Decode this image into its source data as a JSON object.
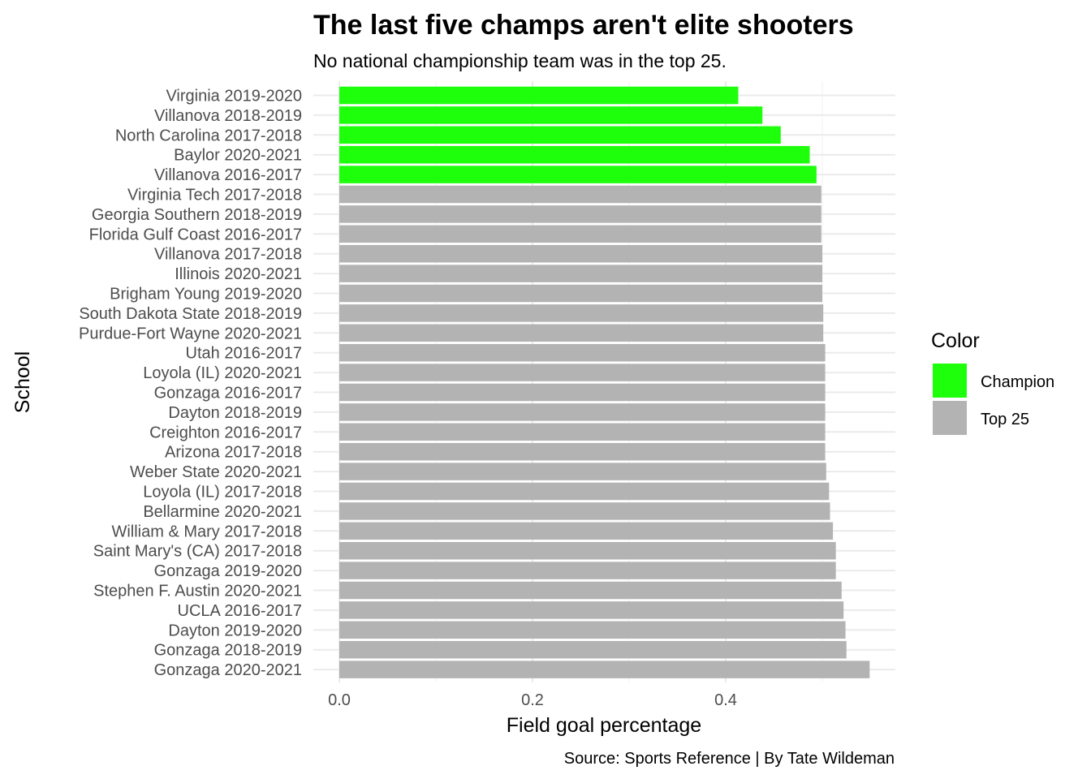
{
  "chart_data": {
    "type": "bar",
    "orientation": "horizontal",
    "title": "The last five champs aren't elite shooters",
    "subtitle": "No national championship team was in the top 25.",
    "xlabel": "Field goal percentage",
    "ylabel": "School",
    "caption": "Source: Sports Reference | By Tate Wildeman",
    "xlim": [
      0,
      0.55
    ],
    "x_ticks": [
      {
        "value": 0.0,
        "label": "0.0"
      },
      {
        "value": 0.2,
        "label": "0.2"
      },
      {
        "value": 0.4,
        "label": "0.4"
      }
    ],
    "grid": true,
    "legend": {
      "title": "Color",
      "position": "right",
      "entries": [
        {
          "label": "Champion",
          "color": "#1eff0b"
        },
        {
          "label": "Top 25",
          "color": "#b3b3b3"
        }
      ]
    },
    "bars": [
      {
        "school": "Virginia 2019-2020",
        "value": 0.413,
        "group": "Champion"
      },
      {
        "school": "Villanova 2018-2019",
        "value": 0.438,
        "group": "Champion"
      },
      {
        "school": "North Carolina 2017-2018",
        "value": 0.457,
        "group": "Champion"
      },
      {
        "school": "Baylor 2020-2021",
        "value": 0.487,
        "group": "Champion"
      },
      {
        "school": "Villanova 2016-2017",
        "value": 0.494,
        "group": "Champion"
      },
      {
        "school": "Virginia Tech 2017-2018",
        "value": 0.499,
        "group": "Top 25"
      },
      {
        "school": "Georgia Southern 2018-2019",
        "value": 0.499,
        "group": "Top 25"
      },
      {
        "school": "Florida Gulf Coast 2016-2017",
        "value": 0.499,
        "group": "Top 25"
      },
      {
        "school": "Villanova 2017-2018",
        "value": 0.5,
        "group": "Top 25"
      },
      {
        "school": "Illinois 2020-2021",
        "value": 0.5,
        "group": "Top 25"
      },
      {
        "school": "Brigham Young 2019-2020",
        "value": 0.5,
        "group": "Top 25"
      },
      {
        "school": "South Dakota State 2018-2019",
        "value": 0.501,
        "group": "Top 25"
      },
      {
        "school": "Purdue-Fort Wayne 2020-2021",
        "value": 0.501,
        "group": "Top 25"
      },
      {
        "school": "Utah 2016-2017",
        "value": 0.503,
        "group": "Top 25"
      },
      {
        "school": "Loyola (IL) 2020-2021",
        "value": 0.503,
        "group": "Top 25"
      },
      {
        "school": "Gonzaga 2016-2017",
        "value": 0.503,
        "group": "Top 25"
      },
      {
        "school": "Dayton 2018-2019",
        "value": 0.503,
        "group": "Top 25"
      },
      {
        "school": "Creighton 2016-2017",
        "value": 0.503,
        "group": "Top 25"
      },
      {
        "school": "Arizona 2017-2018",
        "value": 0.503,
        "group": "Top 25"
      },
      {
        "school": "Weber State 2020-2021",
        "value": 0.504,
        "group": "Top 25"
      },
      {
        "school": "Loyola (IL) 2017-2018",
        "value": 0.507,
        "group": "Top 25"
      },
      {
        "school": "Bellarmine 2020-2021",
        "value": 0.508,
        "group": "Top 25"
      },
      {
        "school": "William & Mary 2017-2018",
        "value": 0.511,
        "group": "Top 25"
      },
      {
        "school": "Saint Mary's (CA) 2017-2018",
        "value": 0.514,
        "group": "Top 25"
      },
      {
        "school": "Gonzaga 2019-2020",
        "value": 0.514,
        "group": "Top 25"
      },
      {
        "school": "Stephen F. Austin 2020-2021",
        "value": 0.52,
        "group": "Top 25"
      },
      {
        "school": "UCLA 2016-2017",
        "value": 0.522,
        "group": "Top 25"
      },
      {
        "school": "Dayton 2019-2020",
        "value": 0.524,
        "group": "Top 25"
      },
      {
        "school": "Gonzaga 2018-2019",
        "value": 0.525,
        "group": "Top 25"
      },
      {
        "school": "Gonzaga 2020-2021",
        "value": 0.549,
        "group": "Top 25"
      }
    ]
  }
}
